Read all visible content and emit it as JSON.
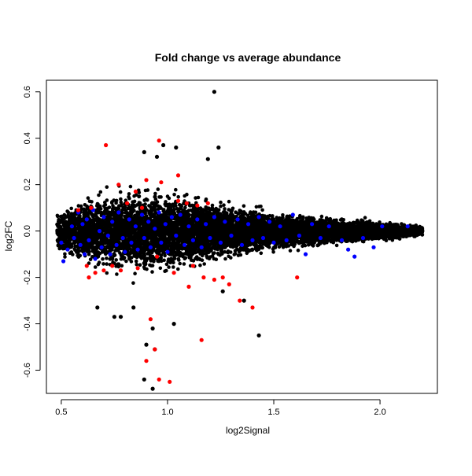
{
  "chart_data": {
    "type": "scatter",
    "title": "Fold change vs average abundance",
    "xlabel": "log2Signal",
    "ylabel": "log2FC",
    "xlim": [
      0.43,
      2.27
    ],
    "ylim": [
      -0.7,
      0.65
    ],
    "x_ticks": [
      0.5,
      1.0,
      1.5,
      2.0
    ],
    "x_tick_labels": [
      "0.5",
      "1.0",
      "1.5",
      "2.0"
    ],
    "y_ticks": [
      -0.6,
      -0.4,
      -0.2,
      0.0,
      0.2,
      0.4,
      0.6
    ],
    "y_tick_labels": [
      "-0.6",
      "-0.4",
      "-0.2",
      "0.0",
      "0.2",
      "0.4",
      "0.6"
    ],
    "grid": false,
    "legend": "none",
    "series": [
      {
        "color": "#000000",
        "cloud": {
          "x_range": [
            0.48,
            2.2
          ],
          "approx_points": 9000,
          "spread": [
            [
              0.5,
              0.06
            ],
            [
              0.6,
              0.09
            ],
            [
              0.7,
              0.11
            ],
            [
              0.8,
              0.12
            ],
            [
              0.9,
              0.12
            ],
            [
              1.0,
              0.11
            ],
            [
              1.1,
              0.1
            ],
            [
              1.2,
              0.085
            ],
            [
              1.3,
              0.07
            ],
            [
              1.4,
              0.06
            ],
            [
              1.5,
              0.05
            ],
            [
              1.6,
              0.045
            ],
            [
              1.7,
              0.04
            ],
            [
              1.8,
              0.035
            ],
            [
              1.9,
              0.03
            ],
            [
              2.0,
              0.025
            ],
            [
              2.1,
              0.02
            ],
            [
              2.2,
              0.012
            ]
          ]
        },
        "points": [
          [
            1.22,
            0.6
          ],
          [
            0.98,
            0.37
          ],
          [
            1.04,
            0.36
          ],
          [
            1.24,
            0.36
          ],
          [
            0.89,
            0.34
          ],
          [
            0.95,
            0.32
          ],
          [
            1.19,
            0.31
          ],
          [
            1.43,
            -0.45
          ],
          [
            0.9,
            -0.49
          ],
          [
            0.94,
            -0.51
          ],
          [
            0.89,
            -0.64
          ],
          [
            0.93,
            -0.68
          ],
          [
            0.78,
            -0.37
          ],
          [
            0.93,
            -0.42
          ],
          [
            1.03,
            -0.4
          ],
          [
            1.26,
            -0.26
          ],
          [
            1.36,
            -0.3
          ],
          [
            0.67,
            -0.33
          ],
          [
            0.75,
            -0.37
          ],
          [
            0.84,
            -0.33
          ]
        ]
      },
      {
        "color": "#0000ff",
        "points": [
          [
            0.5,
            -0.05
          ],
          [
            0.51,
            -0.13
          ],
          [
            0.53,
            -0.08
          ],
          [
            0.55,
            0.02
          ],
          [
            0.56,
            -0.03
          ],
          [
            0.58,
            0.08
          ],
          [
            0.59,
            -0.06
          ],
          [
            0.6,
            0.03
          ],
          [
            0.61,
            -0.1
          ],
          [
            0.62,
            0.05
          ],
          [
            0.63,
            -0.04
          ],
          [
            0.65,
            0.09
          ],
          [
            0.66,
            -0.12
          ],
          [
            0.68,
            0.0
          ],
          [
            0.69,
            -0.07
          ],
          [
            0.7,
            0.06
          ],
          [
            0.72,
            -0.02
          ],
          [
            0.73,
            -0.1
          ],
          [
            0.74,
            0.04
          ],
          [
            0.76,
            -0.06
          ],
          [
            0.77,
            0.08
          ],
          [
            0.79,
            -0.03
          ],
          [
            0.8,
            -0.09
          ],
          [
            0.82,
            0.05
          ],
          [
            0.83,
            -0.05
          ],
          [
            0.85,
            0.02
          ],
          [
            0.86,
            -0.08
          ],
          [
            0.88,
            0.07
          ],
          [
            0.89,
            -0.03
          ],
          [
            0.91,
            0.04
          ],
          [
            0.92,
            -0.07
          ],
          [
            0.94,
            0.01
          ],
          [
            0.96,
            0.08
          ],
          [
            0.97,
            -0.05
          ],
          [
            0.99,
            0.03
          ],
          [
            1.0,
            -0.09
          ],
          [
            1.02,
            0.06
          ],
          [
            1.04,
            -0.02
          ],
          [
            1.06,
            0.07
          ],
          [
            1.08,
            -0.06
          ],
          [
            1.1,
            0.02
          ],
          [
            1.12,
            -0.04
          ],
          [
            1.14,
            0.05
          ],
          [
            1.16,
            -0.07
          ],
          [
            1.18,
            0.03
          ],
          [
            1.2,
            -0.03
          ],
          [
            1.22,
            0.06
          ],
          [
            1.25,
            -0.05
          ],
          [
            1.27,
            0.04
          ],
          [
            1.3,
            -0.02
          ],
          [
            1.33,
            0.05
          ],
          [
            1.35,
            -0.06
          ],
          [
            1.38,
            0.03
          ],
          [
            1.4,
            -0.04
          ],
          [
            1.43,
            0.06
          ],
          [
            1.45,
            -0.03
          ],
          [
            1.48,
            0.04
          ],
          [
            1.5,
            -0.05
          ],
          [
            1.53,
            0.02
          ],
          [
            1.56,
            -0.04
          ],
          [
            1.59,
            0.07
          ],
          [
            1.62,
            -0.02
          ],
          [
            1.65,
            -0.1
          ],
          [
            1.68,
            0.03
          ],
          [
            1.72,
            -0.03
          ],
          [
            1.76,
            0.02
          ],
          [
            1.82,
            -0.04
          ],
          [
            1.85,
            -0.08
          ],
          [
            1.88,
            -0.11
          ],
          [
            1.92,
            -0.03
          ],
          [
            1.97,
            -0.07
          ],
          [
            2.01,
            0.02
          ],
          [
            2.13,
            0.02
          ]
        ]
      },
      {
        "color": "#ff0000",
        "points": [
          [
            0.71,
            0.37
          ],
          [
            0.96,
            0.39
          ],
          [
            0.77,
            0.2
          ],
          [
            0.85,
            0.17
          ],
          [
            0.9,
            0.22
          ],
          [
            0.97,
            0.21
          ],
          [
            1.05,
            0.24
          ],
          [
            1.09,
            0.12
          ],
          [
            1.14,
            0.11
          ],
          [
            1.19,
            0.12
          ],
          [
            0.62,
            -0.15
          ],
          [
            0.63,
            -0.2
          ],
          [
            0.66,
            -0.18
          ],
          [
            0.7,
            -0.17
          ],
          [
            0.74,
            -0.15
          ],
          [
            0.78,
            -0.17
          ],
          [
            0.86,
            -0.16
          ],
          [
            0.95,
            -0.11
          ],
          [
            1.03,
            -0.18
          ],
          [
            1.1,
            -0.24
          ],
          [
            1.12,
            -0.15
          ],
          [
            1.17,
            -0.2
          ],
          [
            1.22,
            -0.21
          ],
          [
            1.26,
            -0.2
          ],
          [
            1.29,
            -0.23
          ],
          [
            1.34,
            -0.3
          ],
          [
            1.4,
            -0.33
          ],
          [
            1.61,
            -0.2
          ],
          [
            0.92,
            -0.38
          ],
          [
            0.94,
            -0.51
          ],
          [
            0.9,
            -0.56
          ],
          [
            0.96,
            -0.64
          ],
          [
            1.01,
            -0.65
          ],
          [
            1.16,
            -0.47
          ],
          [
            0.81,
            0.12
          ],
          [
            0.88,
            0.1
          ],
          [
            0.58,
            0.09
          ],
          [
            0.64,
            0.1
          ],
          [
            1.05,
            0.13
          ]
        ]
      }
    ]
  }
}
